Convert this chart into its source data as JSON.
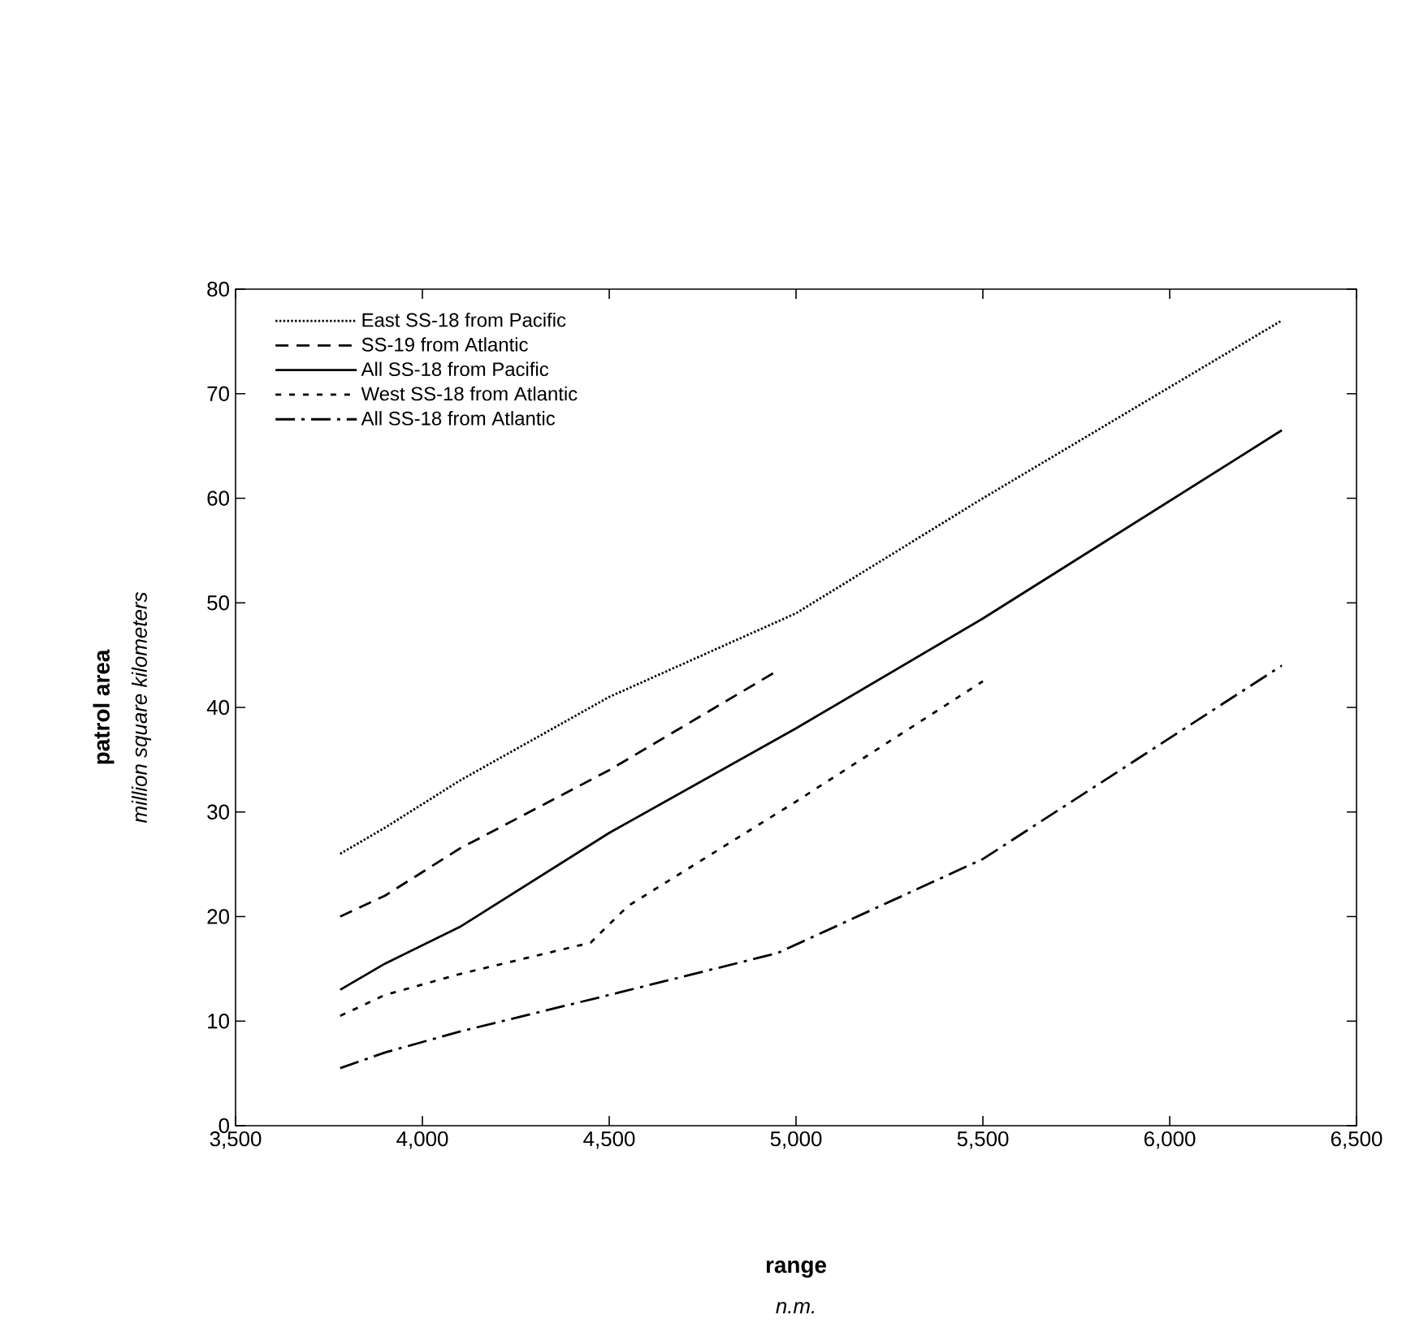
{
  "chart_data": {
    "type": "line",
    "xlabel": "range",
    "ylabel": "patrol area",
    "annotations": [
      "million square kilometers",
      "n.m."
    ],
    "xlim": [
      3500,
      6500
    ],
    "ylim": [
      0,
      80
    ],
    "xticks": [
      {
        "value": 3500,
        "label": "3,500"
      },
      {
        "value": 4000,
        "label": "4,000"
      },
      {
        "value": 4500,
        "label": "4,500"
      },
      {
        "value": 5000,
        "label": "5,000"
      },
      {
        "value": 5500,
        "label": "5,500"
      },
      {
        "value": 6000,
        "label": "6,000"
      },
      {
        "value": 6500,
        "label": "6,500"
      }
    ],
    "yticks": [
      0,
      10,
      20,
      30,
      40,
      50,
      60,
      70,
      80
    ],
    "legend": "top left",
    "grid": false,
    "series": [
      {
        "name": "East SS-18 from Pacific",
        "color": "#000000",
        "line_style": "dotted",
        "x": [
          3780,
          3900,
          4100,
          4500,
          5000,
          5500,
          6300
        ],
        "values": [
          26,
          28.5,
          33,
          41,
          49,
          60,
          77
        ]
      },
      {
        "name": "SS-19 from Atlantic",
        "color": "#000000",
        "line_style": "dashed",
        "x": [
          3780,
          3900,
          4100,
          4500,
          4950
        ],
        "values": [
          20,
          22,
          26.5,
          34,
          43.5
        ]
      },
      {
        "name": "All SS-18 from Pacific",
        "color": "#000000",
        "line_style": "solid",
        "x": [
          3780,
          3900,
          4100,
          4500,
          5000,
          5500,
          6300
        ],
        "values": [
          13,
          15.5,
          19,
          28,
          38,
          48.5,
          66.5
        ]
      },
      {
        "name": "West SS-18 from Atlantic",
        "color": "#000000",
        "line_style": "short dashed",
        "x": [
          3780,
          3900,
          4100,
          4450,
          4550,
          5000,
          5500
        ],
        "values": [
          10.5,
          12.5,
          14.5,
          17.5,
          21,
          31,
          42.5
        ]
      },
      {
        "name": "All SS-18 from Atlantic",
        "color": "#000000",
        "line_style": "dashdot",
        "x": [
          3780,
          3900,
          4100,
          4500,
          4950,
          5500,
          6300
        ],
        "values": [
          5.5,
          7,
          9,
          12.5,
          16.5,
          25.5,
          44
        ]
      }
    ]
  }
}
